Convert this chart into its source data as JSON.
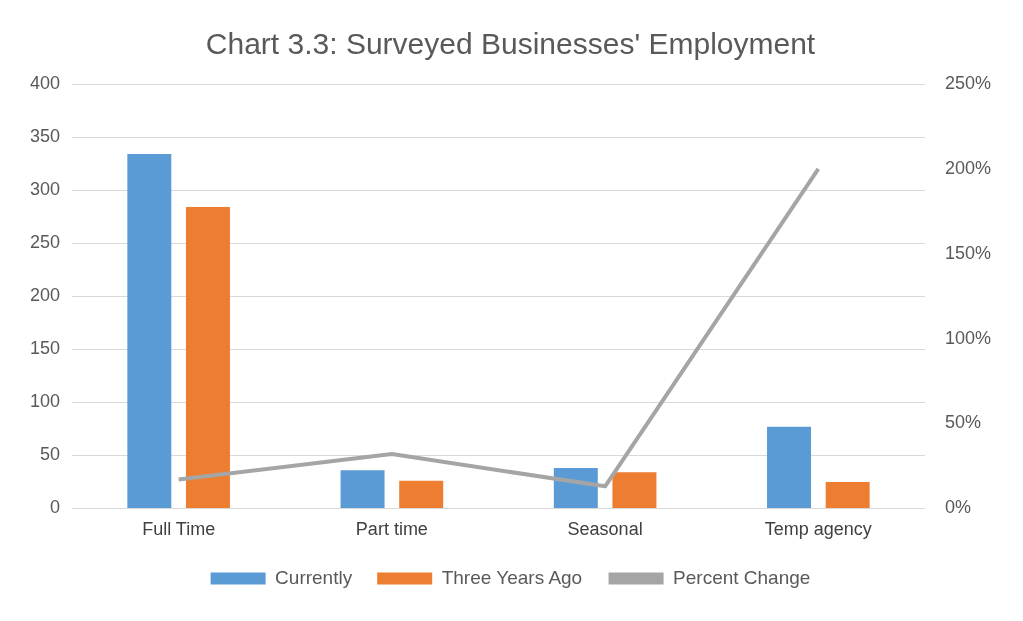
{
  "chart_data": {
    "type": "bar",
    "title": "Chart 3.3: Surveyed Businesses' Employment",
    "categories": [
      "Full Time",
      "Part time",
      "Seasonal",
      "Temp agency"
    ],
    "series": [
      {
        "name": "Currently",
        "color": "#5b9bd5",
        "values": [
          334,
          36,
          38,
          77
        ]
      },
      {
        "name": "Three Years Ago",
        "color": "#ed7d31",
        "values": [
          284,
          26,
          34,
          25
        ]
      },
      {
        "name": "Percent Change",
        "type": "line",
        "axis": "y2",
        "color": "#a5a5a5",
        "values": [
          17,
          32,
          13,
          200
        ]
      }
    ],
    "ylim": [
      0,
      400
    ],
    "yticks": [
      0,
      50,
      100,
      150,
      200,
      250,
      300,
      350,
      400
    ],
    "y2lim": [
      0,
      250
    ],
    "y2ticks": [
      {
        "value": 0,
        "label": "0%"
      },
      {
        "value": 50,
        "label": "50%"
      },
      {
        "value": 100,
        "label": "100%"
      },
      {
        "value": 150,
        "label": "150%"
      },
      {
        "value": 200,
        "label": "200%"
      },
      {
        "value": 250,
        "label": "250%"
      }
    ],
    "grid": "y",
    "legend": "bottom",
    "marker": "none"
  }
}
